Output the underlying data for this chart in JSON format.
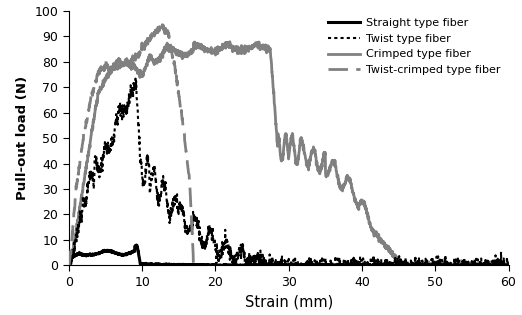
{
  "title": "",
  "xlabel": "Strain (mm)",
  "ylabel": "Pull-out load (N)",
  "xlim": [
    0,
    60
  ],
  "ylim": [
    0,
    100
  ],
  "xticks": [
    0,
    10,
    20,
    30,
    40,
    50,
    60
  ],
  "yticks": [
    0,
    10,
    20,
    30,
    40,
    50,
    60,
    70,
    80,
    90,
    100
  ],
  "legend_entries": [
    "Straight type fiber",
    "Twist type fiber",
    "Crimped type fiber",
    "Twist-crimped type fiber"
  ],
  "gray_color": "#808080",
  "black_color": "#000000",
  "background_color": "#ffffff"
}
